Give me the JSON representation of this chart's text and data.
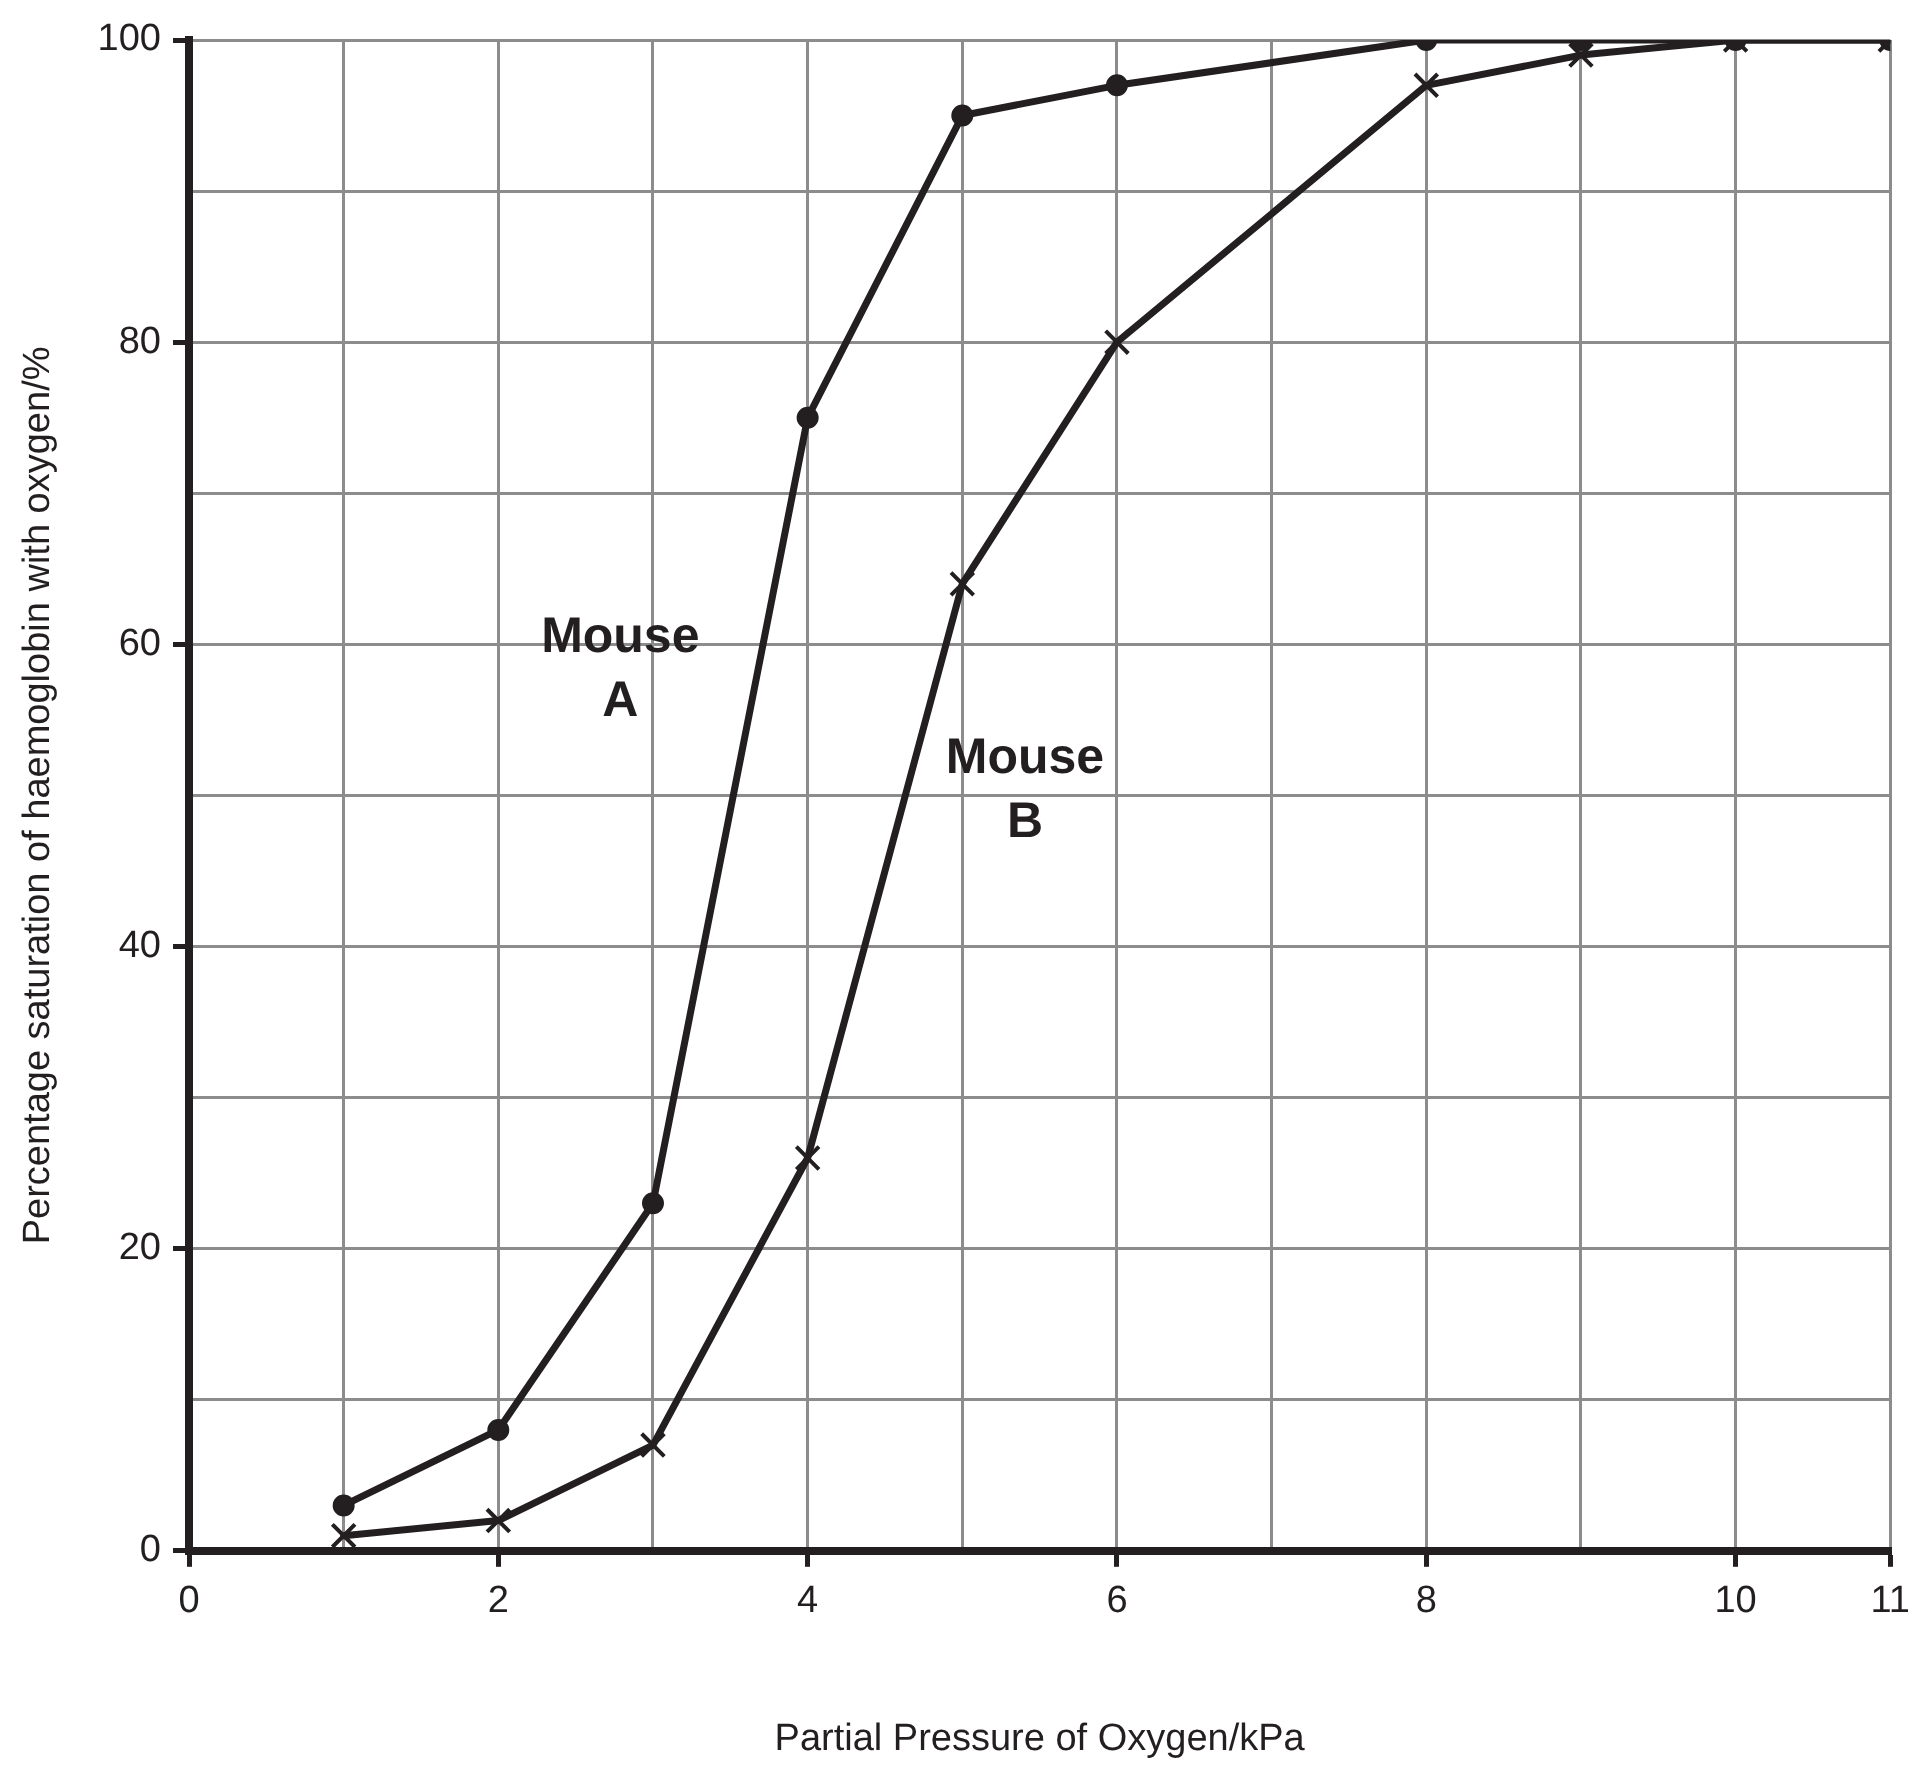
{
  "chart_data": {
    "type": "line",
    "xlabel": "Partial Pressure of Oxygen/kPa",
    "ylabel": "Percentage saturation of haemoglobin with oxygen/%",
    "x": [
      1,
      2,
      3,
      4,
      5,
      6,
      8,
      9,
      10,
      11
    ],
    "series": [
      {
        "name": "Mouse A",
        "color": "#231f20",
        "marker": "circle",
        "values": [
          3,
          8,
          23,
          75,
          95,
          97,
          100,
          100,
          100,
          100
        ]
      },
      {
        "name": "Mouse B",
        "color": "#231f20",
        "marker": "cross",
        "values": [
          1,
          2,
          7,
          26,
          64,
          80,
          97,
          99,
          100,
          100
        ]
      }
    ],
    "xlim": [
      0,
      11
    ],
    "xticks": [
      0,
      {
        "value": 1,
        "label": null
      },
      2,
      {
        "value": 3,
        "label": null
      },
      4,
      {
        "value": 5,
        "label": null
      },
      6,
      {
        "value": 7,
        "label": null
      },
      8,
      {
        "value": 9,
        "label": null
      },
      10,
      11
    ],
    "ylim": [
      0,
      100
    ],
    "yticks": [
      0,
      {
        "value": 10,
        "label": null
      },
      20,
      {
        "value": 30,
        "label": null
      },
      40,
      {
        "value": 50,
        "label": null
      },
      60,
      {
        "value": 70,
        "label": null
      },
      80,
      {
        "value": 90,
        "label": null
      },
      100
    ],
    "grid": true,
    "legend": false,
    "line_style": "solid"
  }
}
